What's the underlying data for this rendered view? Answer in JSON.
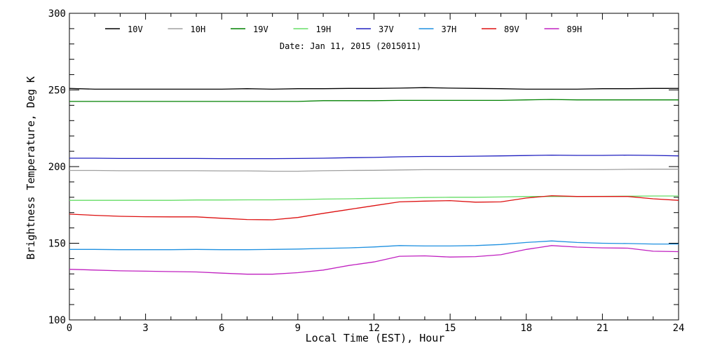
{
  "chart_data": {
    "type": "line",
    "title": "",
    "annotation": "Date: Jan 11, 2015 (2015011)",
    "xlabel": "Local Time (EST), Hour",
    "ylabel": "Brightness Temperature, Deg K",
    "xlim": [
      0,
      24
    ],
    "ylim": [
      100,
      300
    ],
    "xticks": [
      0,
      3,
      6,
      9,
      12,
      15,
      18,
      21,
      24
    ],
    "xtick_labels": [
      "0",
      "3",
      "6",
      "9",
      "12",
      "15",
      "18",
      "21",
      "24"
    ],
    "yticks": [
      100,
      150,
      200,
      250,
      300
    ],
    "ytick_labels": [
      "100",
      "150",
      "200",
      "250",
      "300"
    ],
    "grid": false,
    "legend_position": "top",
    "series": [
      {
        "name": "10V",
        "color": "#000000",
        "x": [
          0,
          1,
          2,
          3,
          4,
          5,
          6,
          7,
          8,
          9,
          10,
          11,
          12,
          13,
          14,
          15,
          16,
          17,
          18,
          19,
          20,
          21,
          22,
          23,
          24
        ],
        "y": [
          251,
          250.5,
          250.5,
          250.5,
          250.5,
          250.5,
          250.5,
          250.8,
          250.5,
          250.8,
          250.8,
          251,
          251,
          251.2,
          251.5,
          251.2,
          251,
          250.8,
          250.5,
          250.5,
          250.5,
          250.8,
          250.8,
          251,
          251
        ]
      },
      {
        "name": "10H",
        "color": "#a0a0a0",
        "x": [
          0,
          1,
          2,
          3,
          4,
          5,
          6,
          7,
          8,
          9,
          10,
          11,
          12,
          13,
          14,
          15,
          16,
          17,
          18,
          19,
          20,
          21,
          22,
          23,
          24
        ],
        "y": [
          197.5,
          197.5,
          197.3,
          197.3,
          197.3,
          197.3,
          197.2,
          197.2,
          197,
          197,
          197.3,
          197.5,
          197.6,
          197.8,
          198,
          198,
          198,
          198,
          198,
          198,
          198,
          198,
          198.2,
          198.3,
          198.3
        ]
      },
      {
        "name": "19V",
        "color": "#008000",
        "x": [
          0,
          1,
          2,
          3,
          4,
          5,
          6,
          7,
          8,
          9,
          10,
          11,
          12,
          13,
          14,
          15,
          16,
          17,
          18,
          19,
          20,
          21,
          22,
          23,
          24
        ],
        "y": [
          242.5,
          242.5,
          242.5,
          242.5,
          242.5,
          242.5,
          242.5,
          242.5,
          242.5,
          242.5,
          243,
          243,
          243,
          243.2,
          243.2,
          243.2,
          243.2,
          243.2,
          243.5,
          243.8,
          243.5,
          243.5,
          243.5,
          243.5,
          243.5
        ]
      },
      {
        "name": "19H",
        "color": "#66dd66",
        "x": [
          0,
          1,
          2,
          3,
          4,
          5,
          6,
          7,
          8,
          9,
          10,
          11,
          12,
          13,
          14,
          15,
          16,
          17,
          18,
          19,
          20,
          21,
          22,
          23,
          24
        ],
        "y": [
          178,
          178,
          178,
          178,
          178,
          178.2,
          178.2,
          178.3,
          178.3,
          178.5,
          178.8,
          179,
          179.3,
          179.5,
          179.8,
          180,
          180,
          180.2,
          180.5,
          180.5,
          180.5,
          180.6,
          180.7,
          180.8,
          180.8
        ]
      },
      {
        "name": "37V",
        "color": "#2020c0",
        "x": [
          0,
          1,
          2,
          3,
          4,
          5,
          6,
          7,
          8,
          9,
          10,
          11,
          12,
          13,
          14,
          15,
          16,
          17,
          18,
          19,
          20,
          21,
          22,
          23,
          24
        ],
        "y": [
          205.5,
          205.5,
          205.3,
          205.3,
          205.3,
          205.3,
          205.2,
          205.2,
          205.2,
          205.3,
          205.5,
          205.8,
          206,
          206.4,
          206.6,
          206.6,
          206.8,
          207,
          207.2,
          207.5,
          207.3,
          207.3,
          207.5,
          207.3,
          207
        ]
      },
      {
        "name": "37H",
        "color": "#1e90e0",
        "x": [
          0,
          1,
          2,
          3,
          4,
          5,
          6,
          7,
          8,
          9,
          10,
          11,
          12,
          13,
          14,
          15,
          16,
          17,
          18,
          19,
          20,
          21,
          22,
          23,
          24
        ],
        "y": [
          146,
          146,
          145.8,
          145.8,
          145.8,
          146,
          145.8,
          145.8,
          146,
          146.2,
          146.6,
          147,
          147.6,
          148.5,
          148.2,
          148.2,
          148.5,
          149.2,
          150.5,
          151.5,
          150.5,
          150,
          149.8,
          149.5,
          149.5
        ]
      },
      {
        "name": "89V",
        "color": "#dd1010",
        "x": [
          0,
          1,
          2,
          3,
          4,
          5,
          6,
          7,
          8,
          9,
          10,
          11,
          12,
          13,
          14,
          15,
          16,
          17,
          18,
          19,
          20,
          21,
          22,
          23,
          24
        ],
        "y": [
          169,
          168.2,
          167.6,
          167.3,
          167.2,
          167.2,
          166.3,
          165.5,
          165.3,
          166.8,
          169.5,
          172,
          174.5,
          177,
          177.5,
          177.8,
          176.8,
          177,
          179.5,
          181,
          180.5,
          180.5,
          180.5,
          179,
          178
        ]
      },
      {
        "name": "89H",
        "color": "#c020c0",
        "x": [
          0,
          1,
          2,
          3,
          4,
          5,
          6,
          7,
          8,
          9,
          10,
          11,
          12,
          13,
          14,
          15,
          16,
          17,
          18,
          19,
          20,
          21,
          22,
          23,
          24
        ],
        "y": [
          133,
          132.5,
          132,
          131.8,
          131.5,
          131.3,
          130.5,
          129.8,
          129.8,
          130.8,
          132.5,
          135.5,
          137.8,
          141.5,
          141.8,
          141,
          141.3,
          142.5,
          146,
          148.5,
          147.5,
          147,
          146.8,
          144.8,
          144.5
        ]
      }
    ]
  }
}
